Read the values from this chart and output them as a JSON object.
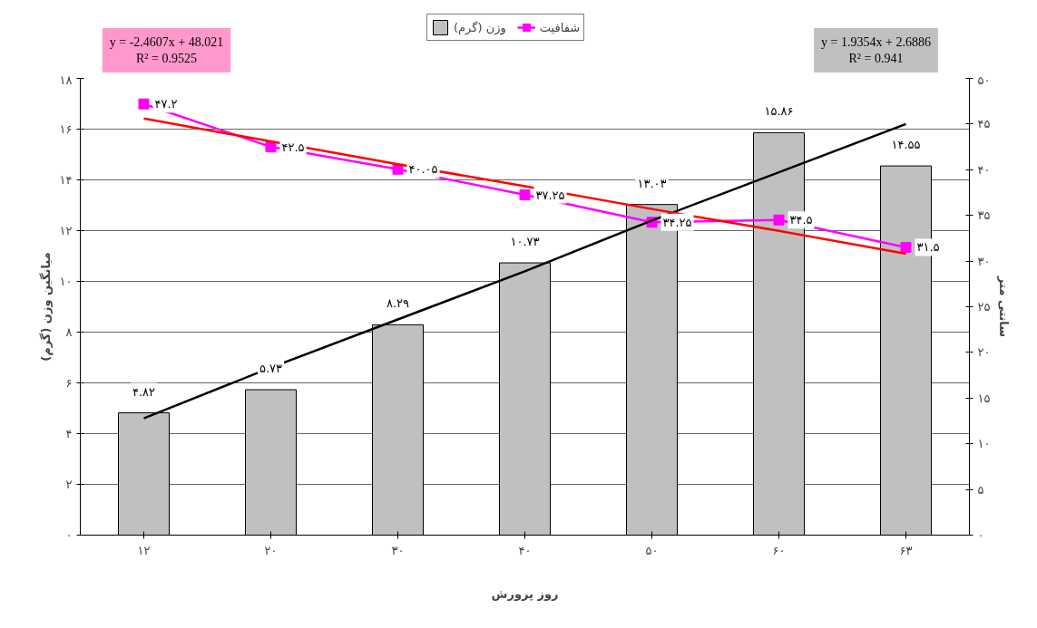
{
  "chart_data": {
    "type": "bar",
    "categories": [
      "۱۲",
      "۲۰",
      "۳۰",
      "۴۰",
      "۵۰",
      "۶۰",
      "۶۳"
    ],
    "xlabel": "روز پرورش",
    "ylabel": "میانگین وزن (گرم)",
    "y2label": "سانتی متر",
    "ylim": [
      0,
      18
    ],
    "yticks": [
      {
        "value": 0,
        "label": "۰"
      },
      {
        "value": 2,
        "label": "۲"
      },
      {
        "value": 4,
        "label": "۴"
      },
      {
        "value": 6,
        "label": "۶"
      },
      {
        "value": 8,
        "label": "۸"
      },
      {
        "value": 10,
        "label": "۱۰"
      },
      {
        "value": 12,
        "label": "۱۲"
      },
      {
        "value": 14,
        "label": "۱۴"
      },
      {
        "value": 16,
        "label": "۱۶"
      },
      {
        "value": 18,
        "label": "۱۸"
      }
    ],
    "y2lim": [
      0,
      50
    ],
    "y2ticks": [
      {
        "value": 0,
        "label": "۰"
      },
      {
        "value": 5,
        "label": "۵"
      },
      {
        "value": 10,
        "label": "۱۰"
      },
      {
        "value": 15,
        "label": "۱۵"
      },
      {
        "value": 20,
        "label": "۲۰"
      },
      {
        "value": 25,
        "label": "۲۵"
      },
      {
        "value": 30,
        "label": "۳۰"
      },
      {
        "value": 35,
        "label": "۳۵"
      },
      {
        "value": 40,
        "label": "۴۰"
      },
      {
        "value": 45,
        "label": "۴۵"
      },
      {
        "value": 50,
        "label": "۵۰"
      }
    ],
    "grid": "y",
    "legend": "top",
    "series": [
      {
        "name": "وزن (گرم)",
        "color": "#c0c0c0",
        "values": [
          4.82,
          5.73,
          8.29,
          10.73,
          13.03,
          15.86,
          14.55
        ],
        "value_labels": [
          "۴.۸۲",
          "۵.۷۳",
          "۸.۲۹",
          "۱۰.۷۳",
          "۱۳.۰۳",
          "۱۵.۸۶",
          "۱۴.۵۵"
        ]
      },
      {
        "name": "شفافیت",
        "type": "line",
        "axis": "y2",
        "color": "#ff00ff",
        "marker": "square",
        "values": [
          47.2,
          42.5,
          40.05,
          37.25,
          34.25,
          34.5,
          31.5
        ],
        "value_labels": [
          "۴۷.۲",
          "۴۲.۵",
          "۴۰.۰۵",
          "۳۷.۲۵",
          "۳۴.۲۵",
          "۳۴.۵",
          "۳۱.۵"
        ]
      },
      {
        "type": "line",
        "color": "#000000",
        "values": [
          4.6,
          6.6,
          8.5,
          10.4,
          12.4,
          14.3,
          16.2
        ]
      },
      {
        "type": "line",
        "axis": "y2",
        "color": "#ff0000",
        "values": [
          45.6,
          43.1,
          40.6,
          38.2,
          35.7,
          33.3,
          30.8
        ]
      }
    ],
    "annotations": [
      "y = -2.4607x + 48.021",
      "R² = 0.9525",
      "y = 1.9354x + 2.6886",
      "R² = 0.941"
    ]
  }
}
